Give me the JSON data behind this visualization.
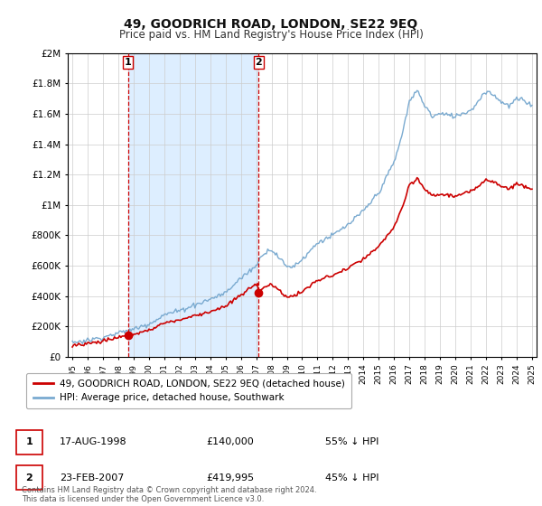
{
  "title": "49, GOODRICH ROAD, LONDON, SE22 9EQ",
  "subtitle": "Price paid vs. HM Land Registry's House Price Index (HPI)",
  "ylim": [
    0,
    2000000
  ],
  "yticks": [
    0,
    200000,
    400000,
    600000,
    800000,
    1000000,
    1200000,
    1400000,
    1600000,
    1800000,
    2000000
  ],
  "ytick_labels": [
    "£0",
    "£200K",
    "£400K",
    "£600K",
    "£800K",
    "£1M",
    "£1.2M",
    "£1.4M",
    "£1.6M",
    "£1.8M",
    "£2M"
  ],
  "purchase1_year": 1998.63,
  "purchase1_price": 140000,
  "purchase2_year": 2007.15,
  "purchase2_price": 419995,
  "legend_house": "49, GOODRICH ROAD, LONDON, SE22 9EQ (detached house)",
  "legend_hpi": "HPI: Average price, detached house, Southwark",
  "footer": "Contains HM Land Registry data © Crown copyright and database right 2024.\nThis data is licensed under the Open Government Licence v3.0.",
  "house_color": "#cc0000",
  "hpi_color": "#7aaad0",
  "shade_color": "#ddeeff",
  "marker_color": "#cc0000",
  "vline_color": "#cc0000",
  "background_color": "#ffffff",
  "grid_color": "#cccccc",
  "table_date1": "17-AUG-1998",
  "table_price1": "£140,000",
  "table_pct1": "55% ↓ HPI",
  "table_date2": "23-FEB-2007",
  "table_price2": "£419,995",
  "table_pct2": "45% ↓ HPI"
}
